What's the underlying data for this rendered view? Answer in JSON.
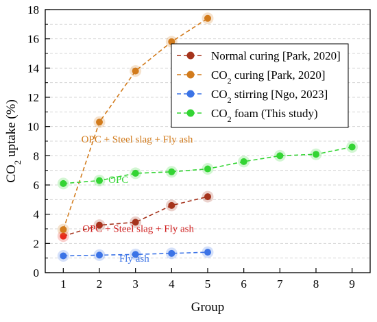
{
  "chart_data": {
    "type": "line",
    "xlabel": "Group",
    "ylabel_parts": [
      "CO",
      "2",
      " uptake (%)"
    ],
    "xlim": [
      0.5,
      9.5
    ],
    "ylim": [
      0,
      18
    ],
    "xticks": [
      "1",
      "2",
      "3",
      "4",
      "5",
      "6",
      "7",
      "8",
      "9"
    ],
    "yticks": [
      "0",
      "2",
      "4",
      "6",
      "8",
      "10",
      "12",
      "14",
      "16",
      "18"
    ],
    "grid": "horizontal dashed",
    "legend_position": "upper-right",
    "series": [
      {
        "legend_parts": [
          "Normal curing [Park, 2020]"
        ],
        "color": "#a5331c",
        "x": [
          1,
          2,
          3,
          4,
          5
        ],
        "y": [
          2.5,
          3.25,
          3.45,
          4.6,
          5.2
        ]
      },
      {
        "legend_parts": [
          "CO",
          "2",
          " curing [Park, 2020]"
        ],
        "color": "#d27b1c",
        "x": [
          1,
          2,
          3,
          4,
          5
        ],
        "y": [
          2.95,
          10.3,
          13.8,
          15.8,
          17.4
        ]
      },
      {
        "legend_parts": [
          "CO",
          "2",
          " stirring [Ngo, 2023]"
        ],
        "color": "#3b73e6",
        "x": [
          1,
          2,
          3,
          4,
          5
        ],
        "y": [
          1.15,
          1.2,
          1.25,
          1.32,
          1.4
        ]
      },
      {
        "legend_parts": [
          "CO",
          "2",
          " foam (This study)"
        ],
        "color": "#33d433",
        "x": [
          1,
          2,
          3,
          4,
          5,
          6,
          7,
          8,
          9
        ],
        "y": [
          6.1,
          6.3,
          6.8,
          6.9,
          7.1,
          7.6,
          8.0,
          8.1,
          8.6
        ]
      }
    ],
    "annotations": [
      {
        "text": "OPC + Steel slag + Fly ash",
        "color": "#d27b1c",
        "x": 1.5,
        "y": 8.9
      },
      {
        "text": "OPC",
        "color": "#33d433",
        "x": 2.25,
        "y": 6.15
      },
      {
        "text": "OPC + Steel slag + Fly ash",
        "color": "#d02020",
        "x": 1.53,
        "y": 2.8
      },
      {
        "text": "Fly ash",
        "color": "#3b73e6",
        "x": 2.55,
        "y": 0.75
      }
    ],
    "first_point_colors": [
      "#e8281c",
      null,
      null,
      null
    ]
  }
}
